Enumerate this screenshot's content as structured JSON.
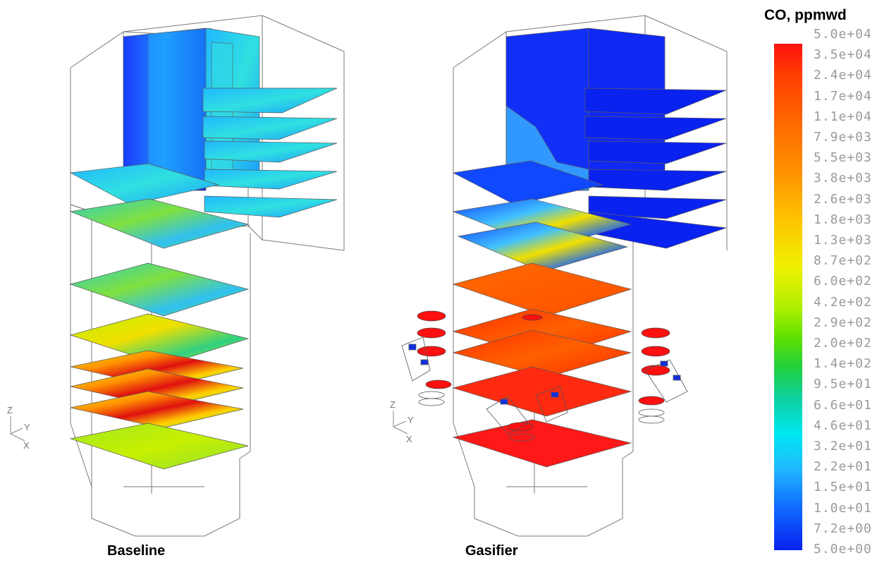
{
  "legend": {
    "title": "CO, ppmwd",
    "ticks": [
      "5.0e+04",
      "3.5e+04",
      "2.4e+04",
      "1.7e+04",
      "1.1e+04",
      "7.9e+03",
      "5.5e+03",
      "3.8e+03",
      "2.6e+03",
      "1.8e+03",
      "1.3e+03",
      "8.7e+02",
      "6.0e+02",
      "4.2e+02",
      "2.9e+02",
      "2.0e+02",
      "1.4e+02",
      "9.5e+01",
      "6.6e+01",
      "4.6e+01",
      "3.2e+01",
      "2.2e+01",
      "1.5e+01",
      "1.0e+01",
      "7.2e+00",
      "5.0e+00"
    ],
    "colors": {
      "max": "#ff1010",
      "mid": "#f0f000",
      "low": "#00e8f0",
      "min": "#0820f0"
    }
  },
  "captions": {
    "baseline": "Baseline",
    "gasifier": "Gasifier"
  },
  "axes": {
    "z": "Z",
    "y": "Y",
    "x": "X"
  }
}
